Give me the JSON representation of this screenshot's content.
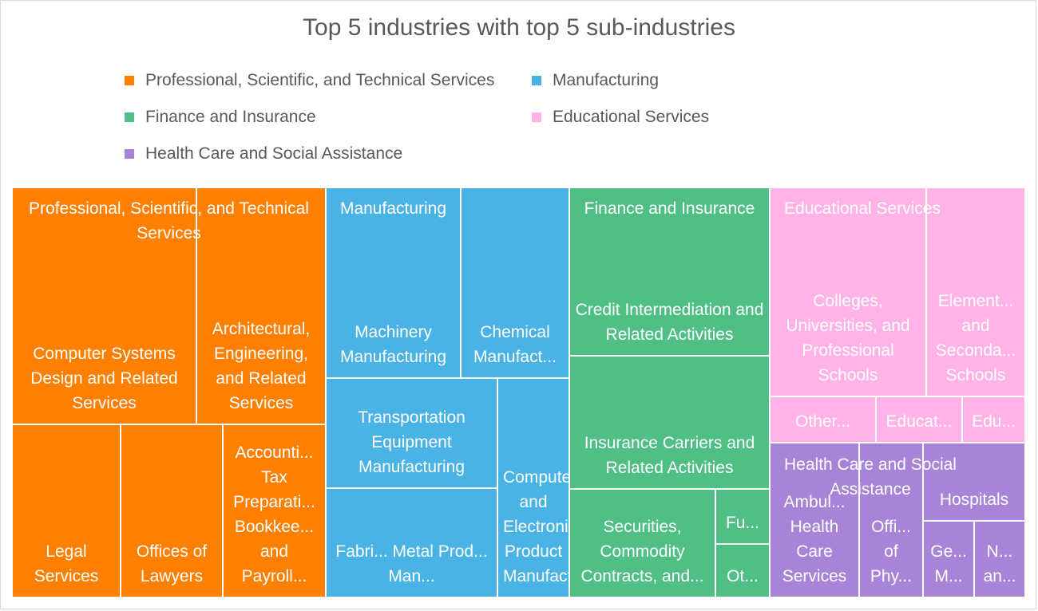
{
  "chart_data": {
    "type": "treemap",
    "title": "Top 5 industries with top 5 sub-industries",
    "legend_position": "top",
    "series": [
      {
        "name": "Professional, Scientific, and Technical Services",
        "color": "#ff7f00",
        "children": [
          {
            "label": "Computer Systems Design and Related Services"
          },
          {
            "label": "Architectural, Engineering, and Related Services"
          },
          {
            "label": "Legal Services"
          },
          {
            "label": "Offices of Lawyers"
          },
          {
            "label": "Accounti... Tax Preparati... Bookkee... and Payroll..."
          }
        ]
      },
      {
        "name": "Manufacturing",
        "color": "#4ab3e6",
        "children": [
          {
            "label": "Machinery Manufacturing"
          },
          {
            "label": "Chemical Manufact..."
          },
          {
            "label": "Transportation Equipment Manufacturing"
          },
          {
            "label": "Computer and Electronic Product Manufacturing"
          },
          {
            "label": "Fabri... Metal Prod... Man..."
          }
        ]
      },
      {
        "name": "Finance and Insurance",
        "color": "#4fbf86",
        "children": [
          {
            "label": "Credit Intermediation and Related Activities"
          },
          {
            "label": "Insurance Carriers and Related Activities"
          },
          {
            "label": "Securities, Commodity Contracts, and..."
          },
          {
            "label": "Fu..."
          },
          {
            "label": "Ot..."
          }
        ]
      },
      {
        "name": "Educational Services",
        "color": "#ffb3e6",
        "children": [
          {
            "label": "Colleges, Universities, and Professional Schools"
          },
          {
            "label": "Element... and Seconda... Schools"
          },
          {
            "label": "Other..."
          },
          {
            "label": "Educat..."
          },
          {
            "label": "Edu..."
          }
        ]
      },
      {
        "name": "Health Care and Social Assistance",
        "color": "#a784d8",
        "children": [
          {
            "label": "Ambul... Health Care Services"
          },
          {
            "label": "Offi... of Phy..."
          },
          {
            "label": "Hospitals"
          },
          {
            "label": "Ge... M..."
          },
          {
            "label": "N... an..."
          }
        ]
      }
    ]
  }
}
